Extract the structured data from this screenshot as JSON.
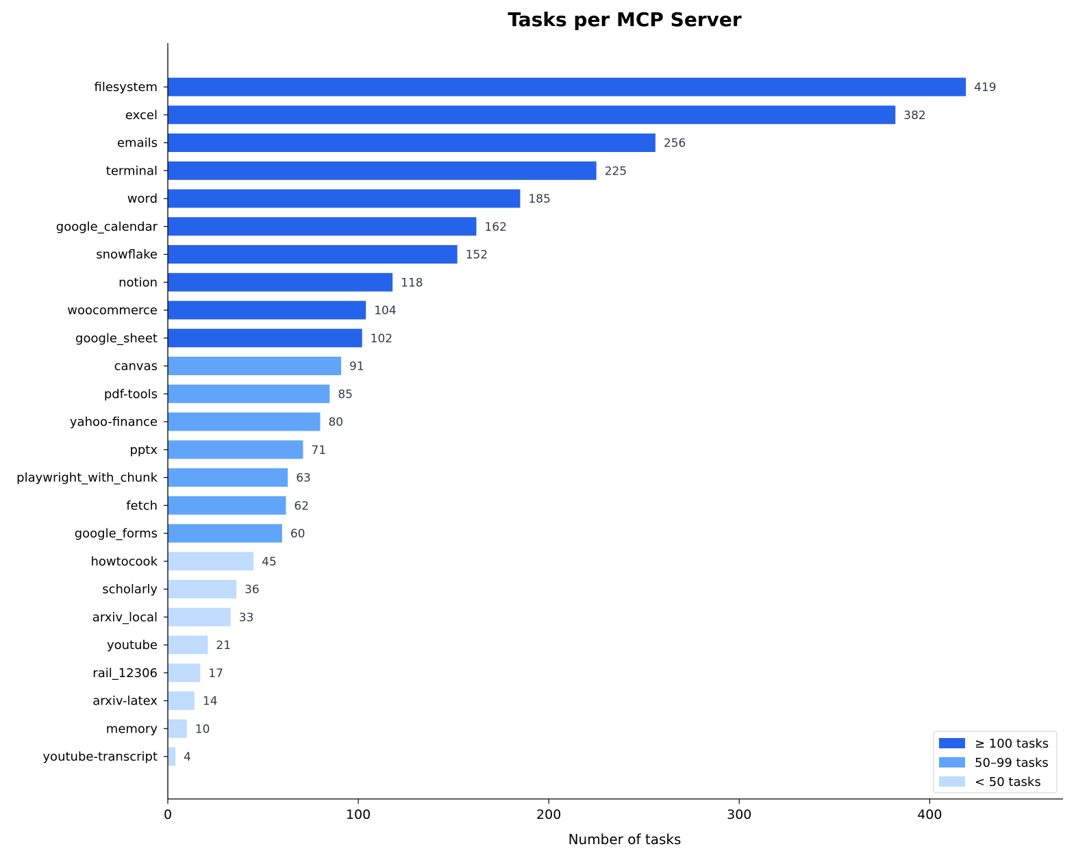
{
  "chart_data": {
    "type": "bar",
    "orientation": "horizontal",
    "title": "Tasks per MCP Server",
    "xlabel": "Number of tasks",
    "ylabel": "",
    "xlim": [
      0,
      470
    ],
    "xticks": [
      0,
      100,
      200,
      300,
      400
    ],
    "grid": false,
    "legend_position": "bottom-right",
    "categories": [
      "filesystem",
      "excel",
      "emails",
      "terminal",
      "word",
      "google_calendar",
      "snowflake",
      "notion",
      "woocommerce",
      "google_sheet",
      "canvas",
      "pdf-tools",
      "yahoo-finance",
      "pptx",
      "playwright_with_chunk",
      "fetch",
      "google_forms",
      "howtocook",
      "scholarly",
      "arxiv_local",
      "youtube",
      "rail_12306",
      "arxiv-latex",
      "memory",
      "youtube-transcript"
    ],
    "values": [
      419,
      382,
      256,
      225,
      185,
      162,
      152,
      118,
      104,
      102,
      91,
      85,
      80,
      71,
      63,
      62,
      60,
      45,
      36,
      33,
      21,
      17,
      14,
      10,
      4
    ],
    "groups": [
      {
        "label": "≥ 100 tasks",
        "min": 100,
        "color": "#2563eb"
      },
      {
        "label": "50–99 tasks",
        "min": 50,
        "color": "#60a5fa"
      },
      {
        "label": "< 50 tasks",
        "min": 0,
        "color": "#bfdbfe"
      }
    ]
  }
}
